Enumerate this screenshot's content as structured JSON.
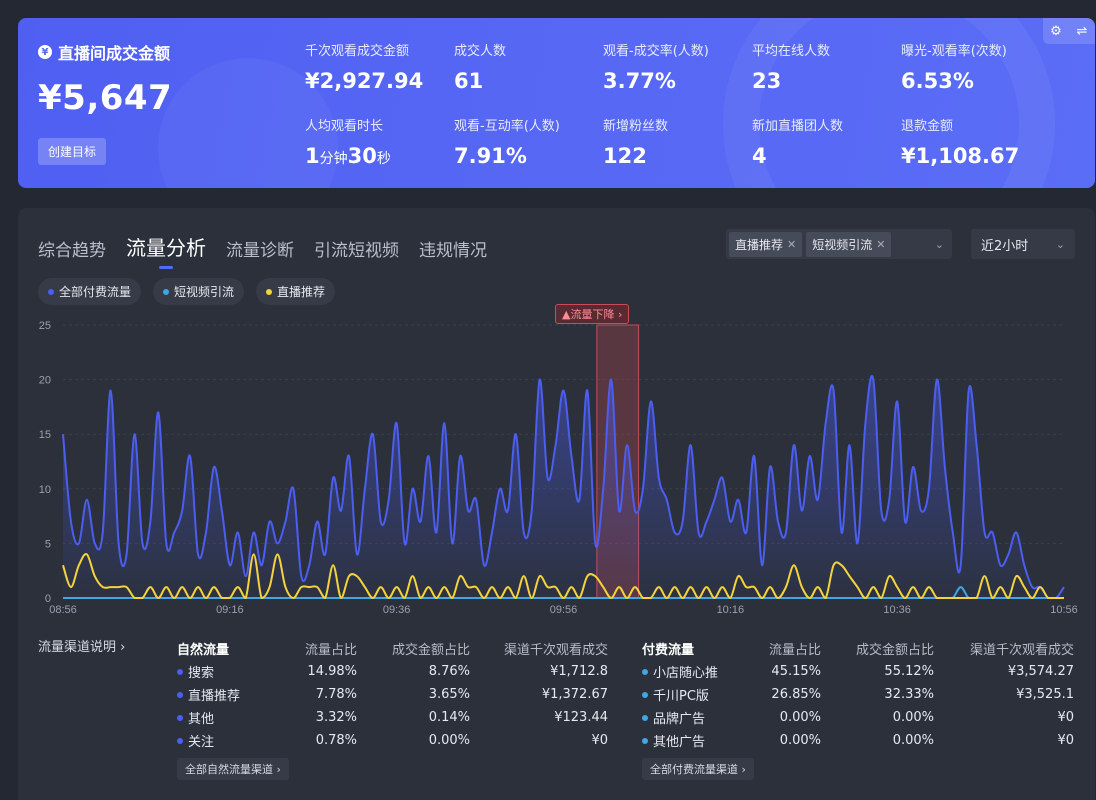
{
  "kpi": {
    "main_label": "直播间成交金额",
    "main_value": "¥5,647",
    "goal_button": "创建目标",
    "items": [
      {
        "label": "千次观看成交金额",
        "value": "¥2,927.94"
      },
      {
        "label": "成交人数",
        "value": "61"
      },
      {
        "label": "观看-成交率(人数)",
        "value": "3.77%"
      },
      {
        "label": "平均在线人数",
        "value": "23"
      },
      {
        "label": "曝光-观看率(次数)",
        "value": "6.53%"
      },
      {
        "label": "人均观看时长",
        "value_a": "1",
        "unit_a": "分钟",
        "value_b": "30",
        "unit_b": "秒"
      },
      {
        "label": "观看-互动率(人数)",
        "value": "7.91%"
      },
      {
        "label": "新增粉丝数",
        "value": "122"
      },
      {
        "label": "新加直播团人数",
        "value": "4"
      },
      {
        "label": "退款金额",
        "value": "¥1,108.67"
      }
    ]
  },
  "tabs": [
    "综合趋势",
    "流量分析",
    "流量诊断",
    "引流短视频",
    "违规情况"
  ],
  "active_tab": 1,
  "filters": {
    "chips": [
      "直播推荐",
      "短视频引流"
    ],
    "time_range": "近2小时"
  },
  "legend": [
    {
      "label": "全部付费流量",
      "color": "#4b5ef0"
    },
    {
      "label": "短视频引流",
      "color": "#3fa6e8"
    },
    {
      "label": "直播推荐",
      "color": "#f5d33a"
    }
  ],
  "alert_label": "▲流量下降 ›",
  "chart_data": {
    "type": "line",
    "ylim": [
      0,
      25
    ],
    "yticks": [
      0,
      5,
      10,
      15,
      20,
      25
    ],
    "xtick_labels": [
      "08:56",
      "09:16",
      "09:36",
      "09:56",
      "10:16",
      "10:36",
      "10:56"
    ],
    "x_range_minutes": [
      0,
      120
    ],
    "highlight_range_minutes": [
      64,
      69
    ],
    "series": [
      {
        "name": "全部付费流量",
        "color": "#4b5ef0",
        "area": true,
        "values": [
          15,
          7,
          5,
          9,
          5,
          6,
          19,
          5,
          4,
          15,
          5,
          7,
          17,
          5,
          6,
          8,
          13,
          4,
          6,
          12,
          8,
          3,
          6,
          2,
          6,
          3,
          7,
          5,
          7,
          10,
          2,
          3,
          7,
          4,
          11,
          8,
          13,
          4,
          10,
          15,
          7,
          9,
          16,
          5,
          10,
          7,
          13,
          6,
          16,
          5,
          13,
          8,
          9,
          3,
          6,
          10,
          8,
          15,
          6,
          8,
          20,
          11,
          14,
          19,
          13,
          9,
          19,
          5,
          10,
          20,
          8,
          14,
          8,
          10,
          18,
          11,
          9,
          6,
          7,
          14,
          6,
          7,
          9,
          11,
          7,
          9,
          6,
          13,
          3,
          12,
          7,
          6,
          14,
          8,
          13,
          9,
          16,
          19,
          6,
          14,
          5,
          16,
          20,
          8,
          9,
          18,
          7,
          12,
          8,
          10,
          20,
          12,
          6,
          3,
          19,
          14,
          6,
          6,
          3,
          4,
          6,
          3,
          1,
          1,
          0,
          0,
          1
        ]
      },
      {
        "name": "短视频引流",
        "color": "#3fa6e8",
        "area": false,
        "values": [
          0,
          0,
          0,
          0,
          0,
          0,
          0,
          0,
          0,
          0,
          0,
          0,
          0,
          0,
          0,
          0,
          0,
          0,
          0,
          0,
          0,
          0,
          0,
          0,
          0,
          0,
          0,
          0,
          0,
          0,
          0,
          0,
          0,
          0,
          0,
          0,
          0,
          0,
          0,
          0,
          0,
          0,
          0,
          0,
          0,
          0,
          0,
          0,
          0,
          0,
          0,
          0,
          0,
          0,
          0,
          0,
          0,
          0,
          0,
          0,
          0,
          0,
          0,
          0,
          0,
          0,
          0,
          0,
          0,
          0,
          0,
          0,
          0,
          0,
          0,
          0,
          0,
          0,
          0,
          0,
          0,
          0,
          0,
          0,
          0,
          0,
          0,
          0,
          0,
          0,
          0,
          0,
          0,
          0,
          0,
          0,
          0,
          0,
          0,
          0,
          0,
          0,
          0,
          0,
          0,
          0,
          0,
          0,
          0,
          0,
          0,
          0,
          0,
          1,
          0,
          0,
          0,
          0,
          0,
          0,
          0,
          0,
          0,
          0,
          0,
          0,
          0
        ]
      },
      {
        "name": "直播推荐",
        "color": "#f5d33a",
        "area": false,
        "values": [
          3,
          1,
          3,
          4,
          2,
          1,
          1,
          1,
          1,
          0,
          0,
          1,
          0,
          1,
          0,
          1,
          0,
          1,
          0,
          1,
          0,
          0,
          1,
          0,
          4,
          0,
          1,
          4,
          1,
          0,
          1,
          1,
          1,
          0,
          3,
          0,
          2,
          2,
          1,
          0,
          1,
          0,
          1,
          0,
          2,
          0,
          1,
          0,
          1,
          0,
          2,
          1,
          1,
          0,
          1,
          0,
          1,
          0,
          2,
          0,
          2,
          1,
          1,
          0,
          1,
          0,
          2,
          2,
          1,
          0,
          1,
          0,
          1,
          0,
          0,
          1,
          0,
          1,
          0,
          1,
          0,
          1,
          0,
          1,
          0,
          2,
          1,
          1,
          0,
          1,
          0,
          1,
          3,
          1,
          0,
          1,
          0,
          3,
          3,
          2,
          1,
          0,
          1,
          0,
          2,
          1,
          0,
          1,
          0,
          1,
          0,
          0,
          0,
          0,
          0,
          0,
          2,
          0,
          1,
          0,
          2,
          1,
          0,
          1,
          0,
          0,
          0
        ]
      }
    ]
  },
  "channel_note": "流量渠道说明 ›",
  "natural": {
    "headers": [
      "自然流量",
      "流量占比",
      "成交金额占比",
      "渠道千次观看成交"
    ],
    "rows": [
      {
        "name": "搜索",
        "share": "14.98%",
        "gmv_share": "8.76%",
        "gpm": "¥1,712.8",
        "color": "#4b5ef0"
      },
      {
        "name": "直播推荐",
        "share": "7.78%",
        "gmv_share": "3.65%",
        "gpm": "¥1,372.67",
        "color": "#4b5ef0"
      },
      {
        "name": "其他",
        "share": "3.32%",
        "gmv_share": "0.14%",
        "gpm": "¥123.44",
        "color": "#4b5ef0"
      },
      {
        "name": "关注",
        "share": "0.78%",
        "gmv_share": "0.00%",
        "gpm": "¥0",
        "color": "#4b5ef0"
      }
    ],
    "more": "全部自然流量渠道 ›"
  },
  "paid": {
    "headers": [
      "付费流量",
      "流量占比",
      "成交金额占比",
      "渠道千次观看成交"
    ],
    "rows": [
      {
        "name": "小店随心推",
        "share": "45.15%",
        "gmv_share": "55.12%",
        "gpm": "¥3,574.27",
        "color": "#3fa6e8"
      },
      {
        "name": "千川PC版",
        "share": "26.85%",
        "gmv_share": "32.33%",
        "gpm": "¥3,525.1",
        "color": "#3fa6e8"
      },
      {
        "name": "品牌广告",
        "share": "0.00%",
        "gmv_share": "0.00%",
        "gpm": "¥0",
        "color": "#3fa6e8"
      },
      {
        "name": "其他广告",
        "share": "0.00%",
        "gmv_share": "0.00%",
        "gpm": "¥0",
        "color": "#3fa6e8"
      }
    ],
    "more": "全部付费流量渠道 ›"
  }
}
